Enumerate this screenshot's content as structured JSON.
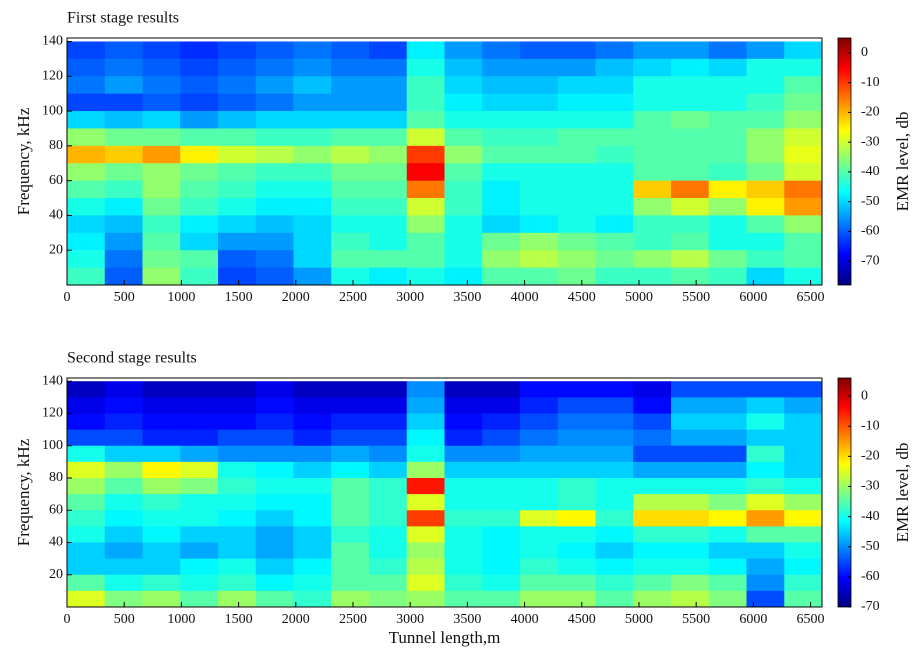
{
  "chart_data": [
    {
      "type": "heatmap",
      "title": "First stage results",
      "y_label": "Frequency, kHz",
      "colorbar_label": "EMR level, db",
      "colormap": "jet",
      "x": [
        165,
        495,
        825,
        1155,
        1485,
        1815,
        2145,
        2475,
        2805,
        3135,
        3465,
        3795,
        4125,
        4455,
        4785,
        5115,
        5445,
        5775,
        6105,
        6435
      ],
      "y": [
        135,
        125,
        115,
        105,
        95,
        85,
        75,
        65,
        55,
        45,
        35,
        25,
        15,
        5
      ],
      "values": [
        [
          -62,
          -60,
          -62,
          -64,
          -62,
          -60,
          -58,
          -60,
          -62,
          -48,
          -55,
          -58,
          -60,
          -60,
          -58,
          -55,
          -55,
          -58,
          -55,
          -50
        ],
        [
          -60,
          -58,
          -60,
          -62,
          -60,
          -58,
          -56,
          -58,
          -58,
          -45,
          -52,
          -55,
          -55,
          -55,
          -52,
          -50,
          -48,
          -50,
          -45,
          -45
        ],
        [
          -58,
          -55,
          -58,
          -60,
          -58,
          -55,
          -52,
          -55,
          -55,
          -42,
          -50,
          -52,
          -52,
          -50,
          -50,
          -45,
          -45,
          -45,
          -45,
          -40
        ],
        [
          -62,
          -62,
          -60,
          -62,
          -60,
          -58,
          -55,
          -55,
          -55,
          -42,
          -48,
          -50,
          -50,
          -48,
          -48,
          -45,
          -45,
          -45,
          -42,
          -38
        ],
        [
          -50,
          -52,
          -50,
          -55,
          -52,
          -50,
          -50,
          -50,
          -50,
          -40,
          -45,
          -45,
          -45,
          -45,
          -45,
          -40,
          -38,
          -40,
          -40,
          -35
        ],
        [
          -35,
          -38,
          -38,
          -40,
          -40,
          -42,
          -42,
          -40,
          -40,
          -30,
          -40,
          -42,
          -42,
          -40,
          -40,
          -40,
          -40,
          -40,
          -35,
          -30
        ],
        [
          -20,
          -22,
          -18,
          -25,
          -30,
          -32,
          -35,
          -32,
          -35,
          -10,
          -35,
          -40,
          -40,
          -40,
          -42,
          -40,
          -40,
          -40,
          -35,
          -28
        ],
        [
          -35,
          -38,
          -35,
          -38,
          -40,
          -42,
          -42,
          -38,
          -38,
          -5,
          -40,
          -45,
          -45,
          -45,
          -45,
          -40,
          -40,
          -42,
          -38,
          -30
        ],
        [
          -40,
          -42,
          -35,
          -40,
          -42,
          -45,
          -45,
          -40,
          -40,
          -15,
          -42,
          -48,
          -45,
          -45,
          -45,
          -22,
          -15,
          -25,
          -22,
          -15
        ],
        [
          -45,
          -48,
          -38,
          -42,
          -45,
          -48,
          -48,
          -42,
          -42,
          -30,
          -42,
          -48,
          -45,
          -45,
          -45,
          -35,
          -30,
          -35,
          -25,
          -18
        ],
        [
          -50,
          -52,
          -42,
          -48,
          -50,
          -52,
          -50,
          -45,
          -45,
          -35,
          -45,
          -50,
          -48,
          -45,
          -48,
          -42,
          -42,
          -45,
          -40,
          -35
        ],
        [
          -48,
          -55,
          -40,
          -50,
          -55,
          -55,
          -50,
          -42,
          -45,
          -40,
          -45,
          -38,
          -35,
          -38,
          -40,
          -42,
          -40,
          -45,
          -45,
          -40
        ],
        [
          -45,
          -58,
          -38,
          -40,
          -60,
          -58,
          -50,
          -40,
          -40,
          -40,
          -45,
          -35,
          -32,
          -35,
          -38,
          -35,
          -32,
          -38,
          -42,
          -40
        ],
        [
          -42,
          -60,
          -35,
          -42,
          -62,
          -60,
          -55,
          -45,
          -48,
          -45,
          -48,
          -40,
          -40,
          -38,
          -42,
          -42,
          -40,
          -42,
          -50,
          -45
        ]
      ],
      "xlim": [
        0,
        6600
      ],
      "xticks": [
        0,
        500,
        1000,
        1500,
        2000,
        2500,
        3000,
        3500,
        4000,
        4500,
        5000,
        5500,
        6000,
        6500
      ],
      "ylim": [
        0,
        142
      ],
      "yticks": [
        20,
        40,
        60,
        80,
        100,
        120,
        140
      ],
      "clim": [
        -78,
        5
      ],
      "colorbar_ticks": [
        0,
        -10,
        -20,
        -30,
        -40,
        -50,
        -60,
        -70
      ]
    },
    {
      "type": "heatmap",
      "title": "Second stage results",
      "x_label": "Tunnel length,m",
      "y_label": "Frequency, kHz",
      "colorbar_label": "EMR level, db",
      "colormap": "jet",
      "x": [
        165,
        495,
        825,
        1155,
        1485,
        1815,
        2145,
        2475,
        2805,
        3135,
        3465,
        3795,
        4125,
        4455,
        4785,
        5115,
        5445,
        5775,
        6105,
        6435
      ],
      "y": [
        135,
        125,
        115,
        105,
        95,
        85,
        75,
        65,
        55,
        45,
        35,
        25,
        15,
        5
      ],
      "values": [
        [
          -65,
          -62,
          -65,
          -65,
          -65,
          -62,
          -65,
          -65,
          -65,
          -50,
          -65,
          -65,
          -60,
          -60,
          -60,
          -62,
          -55,
          -55,
          -55,
          -55
        ],
        [
          -62,
          -60,
          -62,
          -62,
          -62,
          -60,
          -62,
          -62,
          -62,
          -48,
          -62,
          -62,
          -58,
          -55,
          -55,
          -60,
          -48,
          -48,
          -45,
          -48
        ],
        [
          -60,
          -58,
          -60,
          -60,
          -60,
          -58,
          -60,
          -58,
          -58,
          -45,
          -60,
          -58,
          -55,
          -52,
          -52,
          -55,
          -45,
          -45,
          -40,
          -45
        ],
        [
          -55,
          -55,
          -58,
          -58,
          -55,
          -55,
          -58,
          -55,
          -55,
          -42,
          -58,
          -55,
          -52,
          -50,
          -50,
          -52,
          -48,
          -48,
          -45,
          -45
        ],
        [
          -40,
          -45,
          -45,
          -48,
          -50,
          -50,
          -50,
          -48,
          -50,
          -40,
          -50,
          -50,
          -48,
          -48,
          -48,
          -55,
          -55,
          -55,
          -38,
          -45
        ],
        [
          -25,
          -30,
          -22,
          -25,
          -40,
          -42,
          -45,
          -42,
          -45,
          -30,
          -45,
          -45,
          -45,
          -45,
          -45,
          -48,
          -48,
          -48,
          -42,
          -45
        ],
        [
          -30,
          -35,
          -30,
          -32,
          -38,
          -40,
          -40,
          -35,
          -38,
          -5,
          -40,
          -40,
          -40,
          -38,
          -40,
          -40,
          -40,
          -40,
          -38,
          -40
        ],
        [
          -35,
          -40,
          -38,
          -40,
          -40,
          -42,
          -42,
          -35,
          -38,
          -25,
          -40,
          -40,
          -40,
          -38,
          -40,
          -28,
          -28,
          -32,
          -25,
          -30
        ],
        [
          -38,
          -42,
          -40,
          -40,
          -42,
          -45,
          -42,
          -35,
          -38,
          -8,
          -38,
          -38,
          -25,
          -22,
          -38,
          -20,
          -20,
          -22,
          -15,
          -22
        ],
        [
          -40,
          -45,
          -42,
          -45,
          -45,
          -48,
          -45,
          -38,
          -40,
          -25,
          -40,
          -42,
          -40,
          -40,
          -42,
          -38,
          -38,
          -40,
          -35,
          -35
        ],
        [
          -45,
          -48,
          -45,
          -48,
          -45,
          -48,
          -45,
          -35,
          -40,
          -30,
          -40,
          -42,
          -40,
          -42,
          -45,
          -42,
          -42,
          -45,
          -45,
          -40
        ],
        [
          -45,
          -45,
          -45,
          -42,
          -40,
          -45,
          -42,
          -35,
          -38,
          -28,
          -40,
          -42,
          -38,
          -40,
          -42,
          -40,
          -40,
          -42,
          -48,
          -42
        ],
        [
          -35,
          -40,
          -38,
          -40,
          -38,
          -42,
          -40,
          -35,
          -35,
          -25,
          -38,
          -40,
          -35,
          -35,
          -38,
          -35,
          -32,
          -35,
          -50,
          -38
        ],
        [
          -25,
          -32,
          -30,
          -35,
          -30,
          -35,
          -38,
          -30,
          -32,
          -30,
          -35,
          -35,
          -30,
          -30,
          -35,
          -30,
          -28,
          -32,
          -55,
          -35
        ]
      ],
      "xlim": [
        0,
        6600
      ],
      "xticks": [
        0,
        500,
        1000,
        1500,
        2000,
        2500,
        3000,
        3500,
        4000,
        4500,
        5000,
        5500,
        6000,
        6500
      ],
      "ylim": [
        0,
        142
      ],
      "yticks": [
        20,
        40,
        60,
        80,
        100,
        120,
        140
      ],
      "clim": [
        -70,
        6
      ],
      "colorbar_ticks": [
        0,
        -10,
        -20,
        -30,
        -40,
        -50,
        -60,
        -70
      ]
    }
  ]
}
